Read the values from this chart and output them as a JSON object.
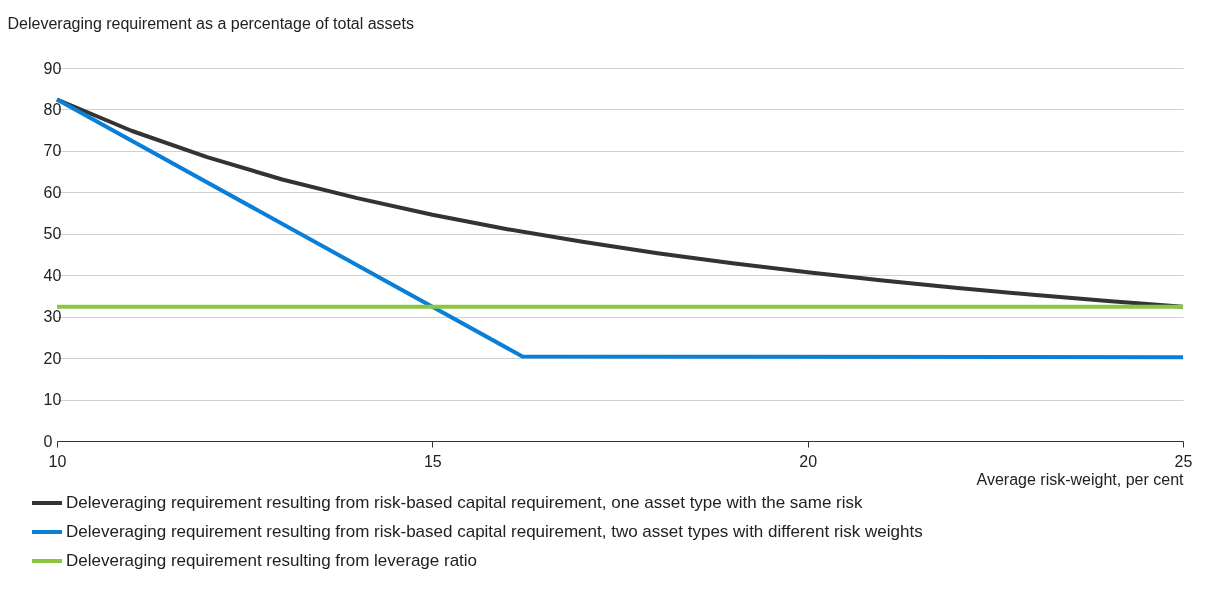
{
  "chart_data": {
    "type": "line",
    "ylabel": "Deleveraging requirement as a percentage of total assets",
    "xlabel": "Average risk-weight, per cent",
    "xlim": [
      10,
      25
    ],
    "xticks": [
      10,
      15,
      20,
      25
    ],
    "ylim": [
      0,
      90
    ],
    "yticks": [
      0,
      10,
      20,
      30,
      40,
      50,
      60,
      70,
      80,
      90
    ],
    "grid": "y",
    "legend": "bottom",
    "line_style": "solid",
    "marker": "none",
    "series": [
      {
        "name": "Deleveraging requirement resulting from risk-based capital requirement, one asset type with the same risk",
        "color": "#333333",
        "x": [
          10,
          11,
          12,
          13,
          14,
          15,
          16,
          17,
          18,
          19,
          20,
          21,
          22,
          23,
          24,
          25
        ],
        "values": [
          82.4,
          74.8,
          68.5,
          63.1,
          58.6,
          54.6,
          51.1,
          48.1,
          45.3,
          42.9,
          40.7,
          38.7,
          36.9,
          35.3,
          33.8,
          32.4
        ]
      },
      {
        "name": "Deleveraging requirement resulting from risk-based capital requirement, two asset types with different risk weights",
        "color": "#0a7fd8",
        "x": [
          10,
          16.2,
          25
        ],
        "values": [
          82.4,
          20.4,
          20.2
        ]
      },
      {
        "name": "Deleveraging requirement resulting from leverage ratio",
        "color": "#8cc63f",
        "x": [
          10,
          25
        ],
        "values": [
          32.4,
          32.4
        ]
      }
    ]
  }
}
